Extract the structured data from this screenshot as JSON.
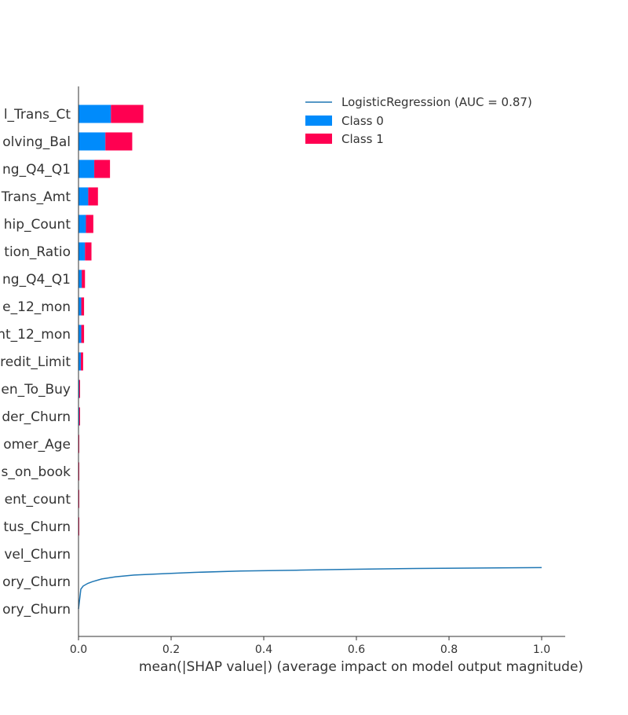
{
  "chart_data": {
    "type": "bar",
    "orientation": "horizontal",
    "stacked": true,
    "categories": [
      "l_Trans_Ct",
      "olving_Bal",
      "ng_Q4_Q1",
      "Trans_Amt",
      "hip_Count",
      "tion_Ratio",
      "ng_Q4_Q1",
      "e_12_mon",
      "nt_12_mon",
      "redit_Limit",
      "en_To_Buy",
      "der_Churn",
      "omer_Age",
      "s_on_book",
      "ent_count",
      "tus_Churn",
      "vel_Churn",
      "ory_Churn",
      "ory_Churn"
    ],
    "series": [
      {
        "name": "Class 0",
        "color": "#008bfb",
        "values": [
          0.07,
          0.058,
          0.034,
          0.021,
          0.016,
          0.014,
          0.007,
          0.006,
          0.006,
          0.005,
          0.001,
          0.001,
          0.0,
          0.0,
          0.0,
          0.0,
          0.0,
          0.0,
          0.0
        ]
      },
      {
        "name": "Class 1",
        "color": "#ff0051",
        "values": [
          0.07,
          0.058,
          0.034,
          0.021,
          0.016,
          0.014,
          0.007,
          0.006,
          0.006,
          0.005,
          0.001,
          0.001,
          0.001,
          0.001,
          0.001,
          0.001,
          0.0,
          0.0,
          0.0
        ]
      }
    ],
    "roc_line": {
      "name": "LogisticRegression (AUC = 0.87)",
      "color": "#1f77b4",
      "x": [
        0.0,
        0.005,
        0.01,
        0.02,
        0.03,
        0.05,
        0.08,
        0.12,
        0.18,
        0.25,
        0.35,
        0.47,
        0.58,
        0.73,
        1.0
      ],
      "y": [
        0.0,
        0.45,
        0.52,
        0.58,
        0.62,
        0.68,
        0.73,
        0.77,
        0.8,
        0.83,
        0.86,
        0.88,
        0.9,
        0.92,
        0.94
      ]
    },
    "xlabel": "mean(|SHAP value|) (average impact on model output magnitude)",
    "xlim": [
      0,
      1.05
    ],
    "xticks": [
      "0.0",
      "0.2",
      "0.4",
      "0.6",
      "0.8",
      "1.0"
    ],
    "legend_position": "top-right",
    "grid": false
  }
}
